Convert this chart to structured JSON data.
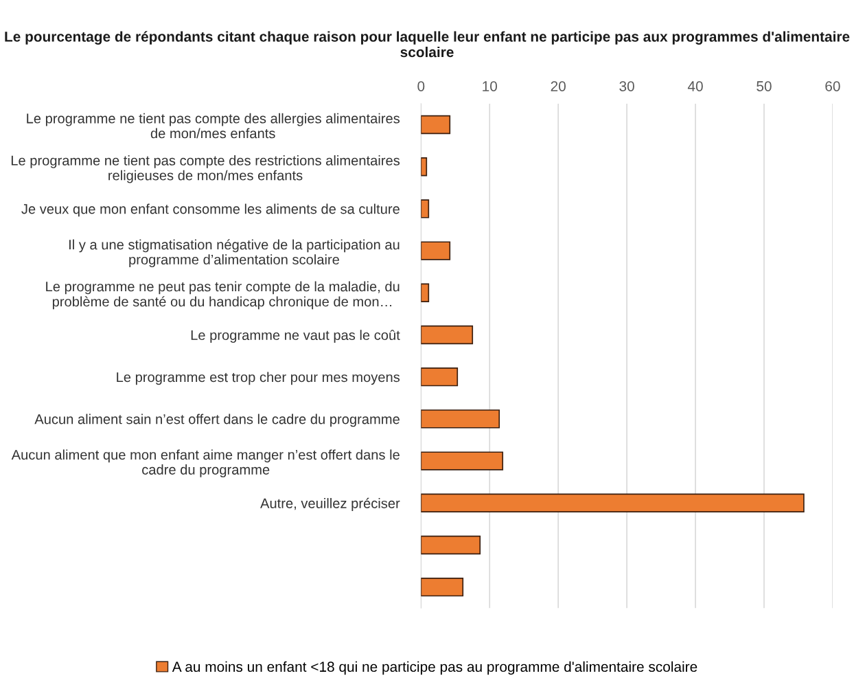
{
  "chart_data": {
    "type": "bar",
    "orientation": "horizontal",
    "title": "Le pourcentage de répondants citant chaque raison pour laquelle leur enfant ne participe pas aux programmes d'alimentaire scolaire",
    "categories": [
      "Le programme ne tient pas compte des allergies alimentaires de mon/mes enfants",
      "Le programme ne tient pas compte des restrictions alimentaires religieuses de mon/mes enfants",
      "Je veux que mon enfant consomme les aliments de sa culture",
      "Il y a une stigmatisation négative de la participation au programme d’alimentation scolaire",
      "Le programme ne peut pas tenir compte de la maladie, du problème de santé ou du handicap chronique de mon…",
      "Le programme ne vaut pas le coût",
      "Le programme est trop cher pour mes moyens",
      "Aucun aliment sain n’est offert dans le cadre du programme",
      "Aucun aliment que mon enfant aime manger n’est offert dans le cadre du programme",
      "Autre, veuillez préciser",
      null,
      null
    ],
    "series": [
      {
        "name": "A au moins un enfant <18 qui ne participe pas au programme d'alimentaire scolaire",
        "color": "#ed7d31",
        "values": [
          4.2,
          0.8,
          1.1,
          4.2,
          1.1,
          7.5,
          5.3,
          11.4,
          11.9,
          55.8,
          8.6,
          6.1
        ]
      }
    ],
    "xlim": [
      0,
      60
    ],
    "xticks": [
      0,
      10,
      20,
      30,
      40,
      50,
      60
    ],
    "grid": "x",
    "legend": "bottom"
  }
}
